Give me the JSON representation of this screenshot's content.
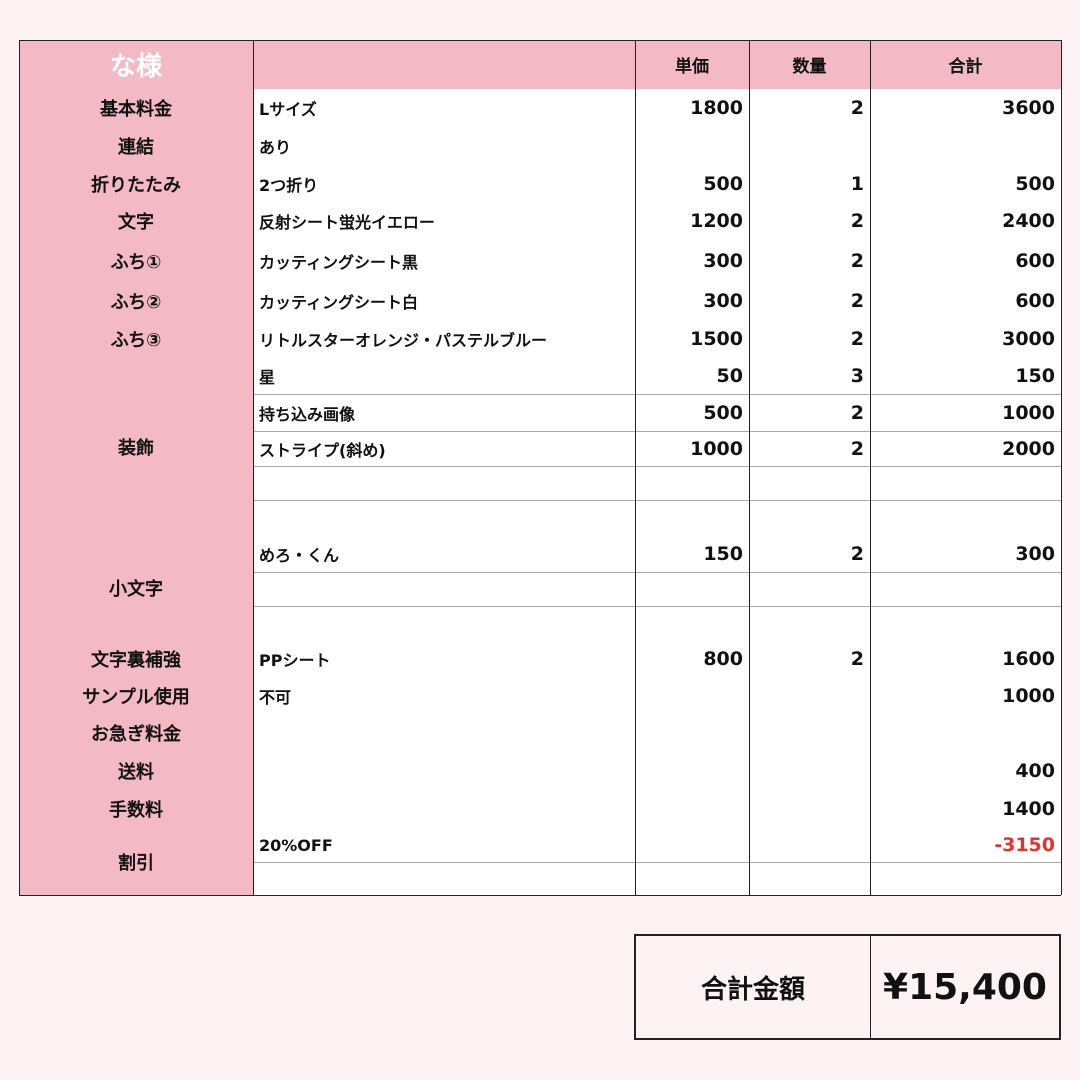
{
  "header": {
    "customer": "な様",
    "unit_price": "単価",
    "quantity": "数量",
    "subtotal": "合計"
  },
  "rows": [
    {
      "label": "基本料金",
      "items": [
        {
          "desc": "Lサイズ",
          "price": "1800",
          "qty": "2",
          "total": "3600"
        }
      ]
    },
    {
      "label": "連結",
      "items": [
        {
          "desc": "あり",
          "price": "",
          "qty": "",
          "total": ""
        }
      ]
    },
    {
      "label": "折りたたみ",
      "items": [
        {
          "desc": "2つ折り",
          "price": "500",
          "qty": "1",
          "total": "500"
        }
      ]
    },
    {
      "label": "文字",
      "items": [
        {
          "desc": "反射シート蛍光イエロー",
          "price": "1200",
          "qty": "2",
          "total": "2400"
        }
      ]
    },
    {
      "label": "ふち①",
      "items": [
        {
          "desc": "カッティングシート黒",
          "price": "300",
          "qty": "2",
          "total": "600"
        }
      ]
    },
    {
      "label": "ふち②",
      "items": [
        {
          "desc": "カッティングシート白",
          "price": "300",
          "qty": "2",
          "total": "600"
        }
      ]
    },
    {
      "label": "ふち③",
      "items": [
        {
          "desc": "リトルスターオレンジ・パステルブルー",
          "price": "1500",
          "qty": "2",
          "total": "3000"
        }
      ]
    },
    {
      "label": "装飾",
      "items": [
        {
          "desc": "星",
          "price": "50",
          "qty": "3",
          "total": "150"
        },
        {
          "desc": "持ち込み画像",
          "price": "500",
          "qty": "2",
          "total": "1000"
        },
        {
          "desc": "ストライプ(斜め)",
          "price": "1000",
          "qty": "2",
          "total": "2000"
        },
        {
          "desc": "",
          "price": "",
          "qty": "",
          "total": ""
        },
        {
          "desc": "",
          "price": "",
          "qty": "",
          "total": ""
        }
      ]
    },
    {
      "label": "小文字",
      "items": [
        {
          "desc": "めろ・くん",
          "price": "150",
          "qty": "2",
          "total": "300"
        },
        {
          "desc": "",
          "price": "",
          "qty": "",
          "total": ""
        },
        {
          "desc": "",
          "price": "",
          "qty": "",
          "total": ""
        }
      ]
    },
    {
      "label": "文字裏補強",
      "items": [
        {
          "desc": "PPシート",
          "price": "800",
          "qty": "2",
          "total": "1600"
        }
      ]
    },
    {
      "label": "サンプル使用",
      "items": [
        {
          "desc": "不可",
          "price": "",
          "qty": "",
          "total": "1000"
        }
      ]
    },
    {
      "label": "お急ぎ料金",
      "items": [
        {
          "desc": "",
          "price": "",
          "qty": "",
          "total": ""
        }
      ]
    },
    {
      "label": "送料",
      "items": [
        {
          "desc": "",
          "price": "",
          "qty": "",
          "total": "400"
        }
      ]
    },
    {
      "label": "手数料",
      "items": [
        {
          "desc": "",
          "price": "",
          "qty": "",
          "total": "1400"
        }
      ]
    },
    {
      "label": "割引",
      "items": [
        {
          "desc": "20%OFF",
          "price": "",
          "qty": "",
          "total": "-3150"
        },
        {
          "desc": "",
          "price": "",
          "qty": "",
          "total": ""
        }
      ]
    }
  ],
  "grand_total": {
    "label": "合計金額",
    "value": "¥15,400"
  },
  "colors": {
    "label_bg": "#f3b9c5",
    "page_bg": "#fdf2f4",
    "discount": "#e8302c"
  }
}
